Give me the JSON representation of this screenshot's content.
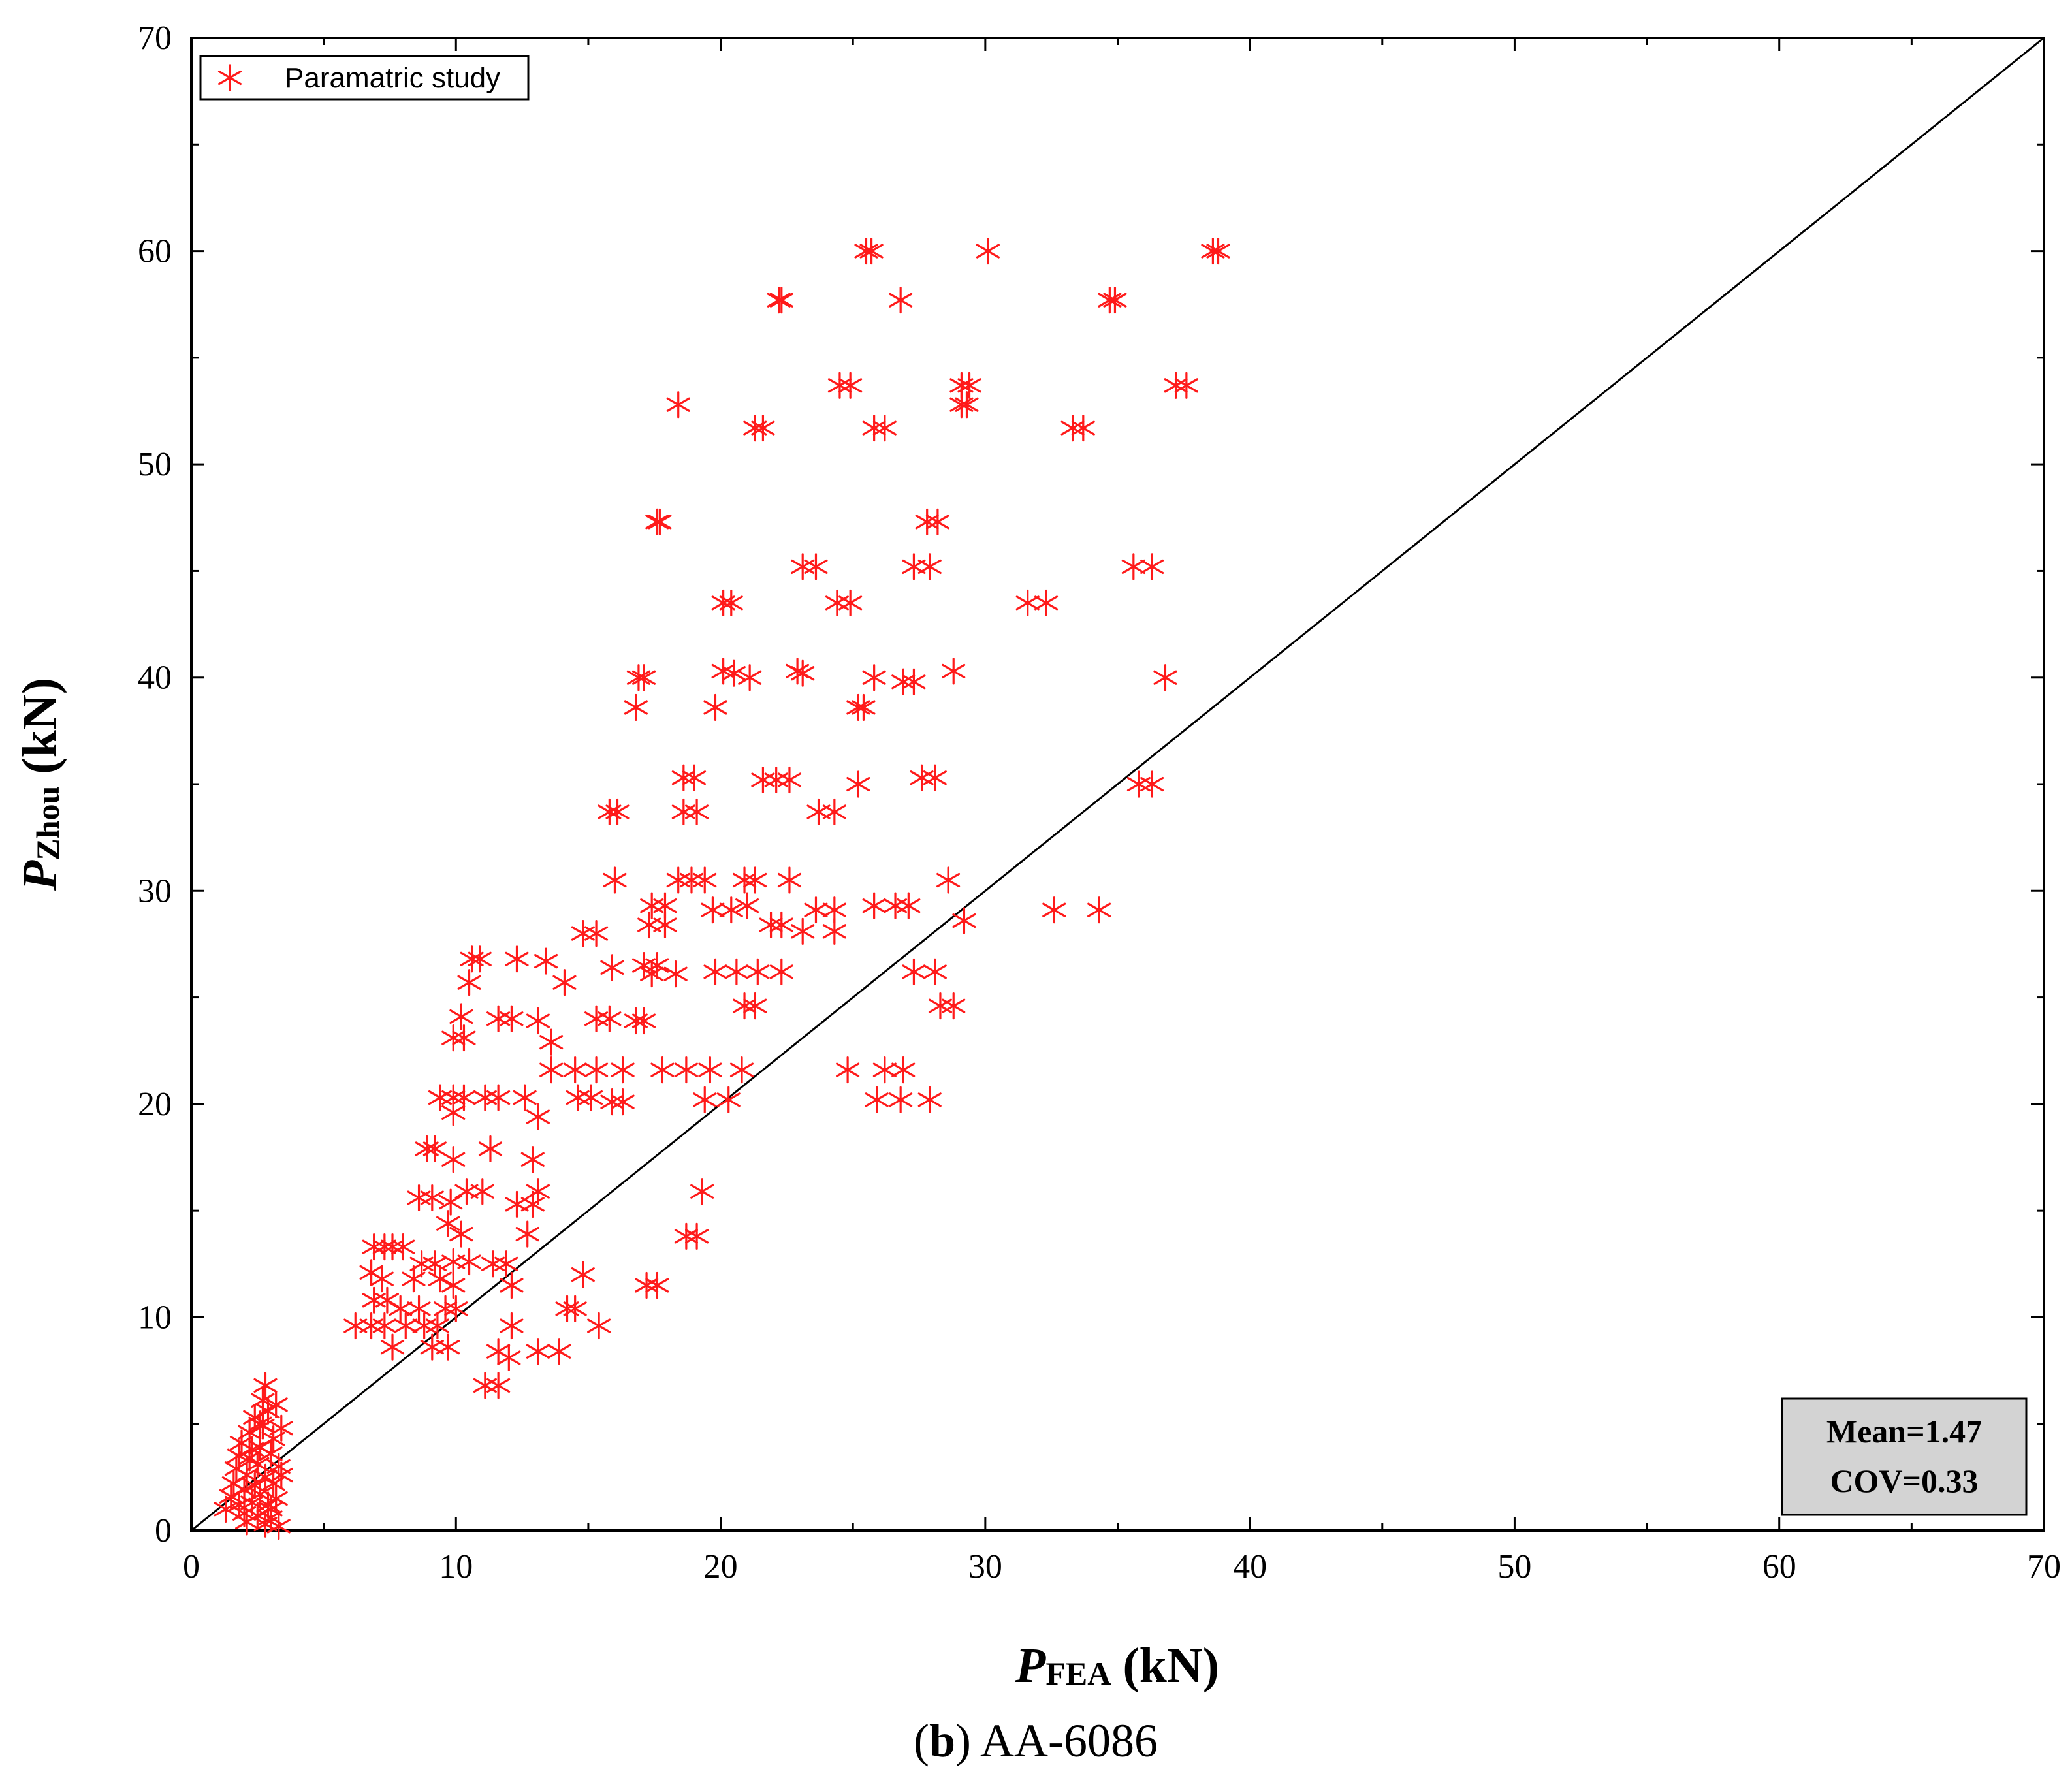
{
  "chart_data": {
    "type": "scatter",
    "xlabel_main": "P",
    "xlabel_sub": "FEA",
    "xlabel_unit": "(kN)",
    "ylabel_main": "P",
    "ylabel_sub": "Zhou",
    "ylabel_unit": "(kN)",
    "xlim": [
      0,
      70
    ],
    "ylim": [
      0,
      70
    ],
    "xticks": [
      0,
      10,
      20,
      30,
      40,
      50,
      60,
      70
    ],
    "yticks": [
      0,
      10,
      20,
      30,
      40,
      50,
      60,
      70
    ],
    "reference_line": {
      "from": [
        0,
        0
      ],
      "to": [
        70,
        70
      ]
    },
    "legend": {
      "label": "Paramatric study",
      "position": "top-left"
    },
    "stats": {
      "mean": "Mean=1.47",
      "cov": "COV=0.33",
      "position": "bottom-right"
    },
    "colors": {
      "marker": "#ff1a1a",
      "line": "#000000",
      "stats_box": "#d3d3d3"
    },
    "series": [
      {
        "name": "Paramatric study",
        "marker": "asterisk",
        "points": [
          [
            25.7,
            60
          ],
          [
            30.1,
            60
          ],
          [
            38.6,
            60
          ],
          [
            38.8,
            60
          ],
          [
            25.5,
            60
          ],
          [
            22.3,
            57.7
          ],
          [
            22.2,
            57.7
          ],
          [
            26.8,
            57.7
          ],
          [
            34.7,
            57.7
          ],
          [
            34.9,
            57.7
          ],
          [
            24.5,
            53.7
          ],
          [
            24.9,
            53.7
          ],
          [
            29.1,
            53.7
          ],
          [
            29.4,
            53.7
          ],
          [
            37.2,
            53.7
          ],
          [
            37.6,
            53.7
          ],
          [
            18.4,
            52.8
          ],
          [
            29.3,
            52.8
          ],
          [
            29.1,
            52.8
          ],
          [
            21.3,
            51.7
          ],
          [
            21.6,
            51.7
          ],
          [
            25.8,
            51.7
          ],
          [
            26.2,
            51.7
          ],
          [
            33.3,
            51.7
          ],
          [
            33.7,
            51.7
          ],
          [
            17.7,
            47.3
          ],
          [
            17.6,
            47.3
          ],
          [
            27.8,
            47.3
          ],
          [
            28.2,
            47.3
          ],
          [
            23.1,
            45.2
          ],
          [
            23.6,
            45.2
          ],
          [
            27.3,
            45.2
          ],
          [
            27.9,
            45.2
          ],
          [
            35.6,
            45.2
          ],
          [
            36.3,
            45.2
          ],
          [
            20.1,
            43.5
          ],
          [
            20.4,
            43.5
          ],
          [
            24.4,
            43.5
          ],
          [
            24.9,
            43.5
          ],
          [
            31.6,
            43.5
          ],
          [
            32.3,
            43.5
          ],
          [
            16.9,
            40
          ],
          [
            17.1,
            40
          ],
          [
            20.1,
            40.3
          ],
          [
            20.5,
            40.2
          ],
          [
            21.1,
            40
          ],
          [
            22.9,
            40.3
          ],
          [
            23.1,
            40.2
          ],
          [
            25.8,
            40
          ],
          [
            26.9,
            39.8
          ],
          [
            27.3,
            39.8
          ],
          [
            28.8,
            40.3
          ],
          [
            36.8,
            40
          ],
          [
            16.8,
            38.6
          ],
          [
            19.8,
            38.6
          ],
          [
            25.2,
            38.6
          ],
          [
            25.4,
            38.6
          ],
          [
            18.6,
            35.3
          ],
          [
            19.0,
            35.3
          ],
          [
            21.6,
            35.2
          ],
          [
            22.1,
            35.2
          ],
          [
            22.6,
            35.2
          ],
          [
            25.2,
            35
          ],
          [
            27.6,
            35.3
          ],
          [
            28.1,
            35.3
          ],
          [
            35.8,
            35
          ],
          [
            36.3,
            35
          ],
          [
            15.8,
            33.7
          ],
          [
            16.1,
            33.7
          ],
          [
            18.6,
            33.7
          ],
          [
            19.1,
            33.7
          ],
          [
            23.7,
            33.7
          ],
          [
            24.3,
            33.7
          ],
          [
            16.0,
            30.5
          ],
          [
            18.4,
            30.5
          ],
          [
            18.9,
            30.5
          ],
          [
            19.4,
            30.5
          ],
          [
            20.9,
            30.5
          ],
          [
            21.3,
            30.5
          ],
          [
            22.6,
            30.5
          ],
          [
            28.6,
            30.5
          ],
          [
            17.4,
            29.3
          ],
          [
            17.9,
            29.3
          ],
          [
            19.7,
            29.1
          ],
          [
            20.4,
            29.1
          ],
          [
            21.0,
            29.3
          ],
          [
            23.6,
            29.1
          ],
          [
            24.3,
            29.1
          ],
          [
            25.8,
            29.3
          ],
          [
            26.6,
            29.3
          ],
          [
            27.1,
            29.3
          ],
          [
            32.6,
            29.1
          ],
          [
            34.3,
            29.1
          ],
          [
            17.3,
            28.4
          ],
          [
            17.9,
            28.4
          ],
          [
            21.9,
            28.4
          ],
          [
            22.3,
            28.4
          ],
          [
            23.1,
            28.1
          ],
          [
            24.3,
            28.1
          ],
          [
            29.2,
            28.6
          ],
          [
            14.8,
            28
          ],
          [
            15.3,
            28
          ],
          [
            17.1,
            26.5
          ],
          [
            17.6,
            26.5
          ],
          [
            10.6,
            26.8
          ],
          [
            10.9,
            26.8
          ],
          [
            12.3,
            26.8
          ],
          [
            13.4,
            26.7
          ],
          [
            15.9,
            26.4
          ],
          [
            17.4,
            26.1
          ],
          [
            18.3,
            26.1
          ],
          [
            19.8,
            26.2
          ],
          [
            20.6,
            26.2
          ],
          [
            21.4,
            26.2
          ],
          [
            22.3,
            26.2
          ],
          [
            27.3,
            26.2
          ],
          [
            28.1,
            26.2
          ],
          [
            10.5,
            25.7
          ],
          [
            14.1,
            25.7
          ],
          [
            10.2,
            24.1
          ],
          [
            11.6,
            24
          ],
          [
            12.1,
            24
          ],
          [
            13.1,
            23.9
          ],
          [
            15.3,
            24
          ],
          [
            15.8,
            24
          ],
          [
            16.8,
            23.9
          ],
          [
            17.1,
            23.9
          ],
          [
            20.9,
            24.6
          ],
          [
            21.3,
            24.6
          ],
          [
            28.3,
            24.6
          ],
          [
            28.8,
            24.6
          ],
          [
            9.9,
            23.1
          ],
          [
            10.3,
            23.1
          ],
          [
            13.6,
            22.9
          ],
          [
            13.6,
            21.6
          ],
          [
            14.5,
            21.6
          ],
          [
            15.3,
            21.6
          ],
          [
            16.3,
            21.6
          ],
          [
            17.8,
            21.6
          ],
          [
            18.7,
            21.6
          ],
          [
            19.6,
            21.6
          ],
          [
            20.8,
            21.6
          ],
          [
            24.8,
            21.6
          ],
          [
            26.2,
            21.6
          ],
          [
            26.9,
            21.6
          ],
          [
            9.4,
            20.3
          ],
          [
            9.9,
            20.3
          ],
          [
            10.3,
            20.3
          ],
          [
            11.1,
            20.3
          ],
          [
            11.6,
            20.3
          ],
          [
            12.6,
            20.3
          ],
          [
            14.6,
            20.3
          ],
          [
            15.1,
            20.3
          ],
          [
            15.9,
            20.1
          ],
          [
            16.3,
            20.1
          ],
          [
            19.4,
            20.2
          ],
          [
            20.3,
            20.2
          ],
          [
            25.9,
            20.2
          ],
          [
            26.8,
            20.2
          ],
          [
            27.9,
            20.2
          ],
          [
            9.9,
            19.6
          ],
          [
            13.1,
            19.4
          ],
          [
            8.9,
            17.9
          ],
          [
            9.2,
            17.9
          ],
          [
            9.9,
            17.4
          ],
          [
            11.3,
            17.9
          ],
          [
            12.9,
            17.4
          ],
          [
            8.6,
            15.6
          ],
          [
            9.1,
            15.6
          ],
          [
            9.8,
            15.4
          ],
          [
            10.4,
            15.9
          ],
          [
            11.0,
            15.9
          ],
          [
            12.3,
            15.3
          ],
          [
            12.9,
            15.3
          ],
          [
            13.1,
            15.9
          ],
          [
            19.3,
            15.9
          ],
          [
            9.7,
            14.4
          ],
          [
            10.2,
            13.9
          ],
          [
            12.7,
            13.9
          ],
          [
            18.7,
            13.8
          ],
          [
            19.1,
            13.8
          ],
          [
            6.9,
            13.3
          ],
          [
            7.3,
            13.3
          ],
          [
            7.6,
            13.3
          ],
          [
            8.0,
            13.3
          ],
          [
            8.7,
            12.5
          ],
          [
            9.2,
            12.5
          ],
          [
            9.9,
            12.6
          ],
          [
            10.5,
            12.6
          ],
          [
            11.4,
            12.5
          ],
          [
            11.9,
            12.5
          ],
          [
            6.8,
            12.1
          ],
          [
            7.2,
            11.8
          ],
          [
            8.4,
            11.8
          ],
          [
            9.4,
            11.8
          ],
          [
            9.9,
            11.5
          ],
          [
            12.1,
            11.5
          ],
          [
            14.8,
            12
          ],
          [
            17.2,
            11.5
          ],
          [
            17.6,
            11.5
          ],
          [
            6.9,
            10.8
          ],
          [
            7.4,
            10.8
          ],
          [
            7.9,
            10.4
          ],
          [
            8.6,
            10.4
          ],
          [
            9.6,
            10.4
          ],
          [
            10.0,
            10.4
          ],
          [
            14.2,
            10.4
          ],
          [
            14.5,
            10.4
          ],
          [
            6.2,
            9.6
          ],
          [
            6.8,
            9.6
          ],
          [
            7.3,
            9.6
          ],
          [
            8.1,
            9.6
          ],
          [
            8.8,
            9.6
          ],
          [
            9.3,
            9.6
          ],
          [
            12.1,
            9.6
          ],
          [
            15.4,
            9.6
          ],
          [
            7.6,
            8.6
          ],
          [
            9.1,
            8.6
          ],
          [
            9.7,
            8.6
          ],
          [
            11.6,
            8.4
          ],
          [
            12.0,
            8.1
          ],
          [
            13.1,
            8.4
          ],
          [
            13.9,
            8.4
          ],
          [
            11.1,
            6.8
          ],
          [
            11.6,
            6.8
          ],
          [
            1.3,
            1.0
          ],
          [
            1.5,
            1.6
          ],
          [
            1.6,
            2.2
          ],
          [
            1.7,
            2.9
          ],
          [
            1.8,
            3.5
          ],
          [
            1.9,
            4.1
          ],
          [
            2.0,
            0.8
          ],
          [
            2.0,
            1.9
          ],
          [
            2.1,
            2.6
          ],
          [
            2.2,
            3.4
          ],
          [
            2.2,
            4.6
          ],
          [
            2.3,
            1.3
          ],
          [
            2.4,
            2.1
          ],
          [
            2.4,
            5.3
          ],
          [
            2.5,
            3.1
          ],
          [
            2.5,
            0.7
          ],
          [
            2.6,
            1.7
          ],
          [
            2.6,
            3.9
          ],
          [
            2.7,
            6.1
          ],
          [
            2.7,
            4.9
          ],
          [
            2.8,
            6.8
          ],
          [
            2.8,
            2.5
          ],
          [
            2.8,
            0.3
          ],
          [
            2.9,
            1.2
          ],
          [
            2.9,
            5.6
          ],
          [
            3.0,
            3.6
          ],
          [
            3.0,
            0.6
          ],
          [
            3.1,
            4.3
          ],
          [
            3.1,
            2.2
          ],
          [
            3.2,
            5.9
          ],
          [
            3.2,
            1.5
          ],
          [
            3.3,
            3.0
          ],
          [
            3.3,
            0.2
          ],
          [
            3.4,
            4.8
          ],
          [
            3.4,
            2.6
          ],
          [
            1.8,
            1.2
          ],
          [
            2.1,
            0.4
          ],
          [
            2.3,
            3.8
          ],
          [
            2.6,
            5.0
          ],
          [
            3.0,
            1.0
          ]
        ]
      }
    ]
  },
  "caption": {
    "prefix": "(",
    "bold": "b",
    "rest": ") AA-6086"
  }
}
